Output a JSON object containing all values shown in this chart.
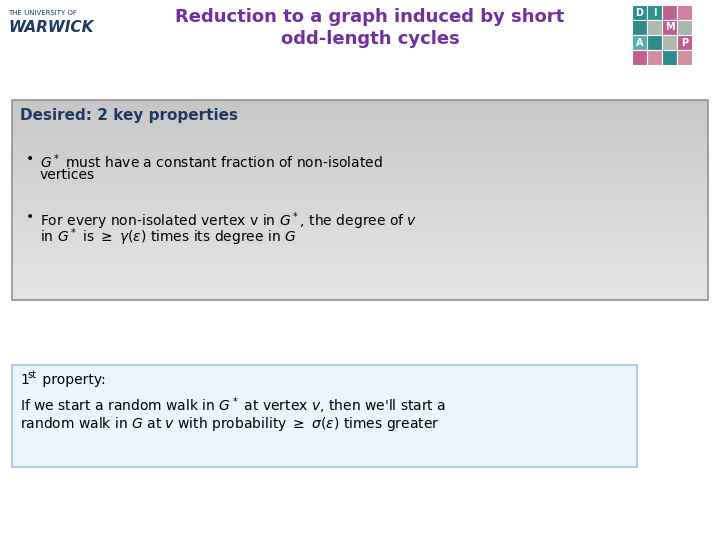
{
  "title_line1": "Reduction to a graph induced by short",
  "title_line2": "odd-length cycles",
  "title_color": "#7030A0",
  "bg_color": "#FFFFFF",
  "warwick_small": "THE UNIVERSITY OF",
  "warwick_big": "WARWICK",
  "warwick_color": "#1F3864",
  "box1_title": "Desired: 2 key properties",
  "box1_title_color": "#1F3864",
  "box2_bg": "#EBF5FB",
  "box2_border": "#9DC3E6",
  "dimap_teal": "#2E8B8B",
  "dimap_pink": "#B05080",
  "dimap_gray": "#A0A0A0"
}
